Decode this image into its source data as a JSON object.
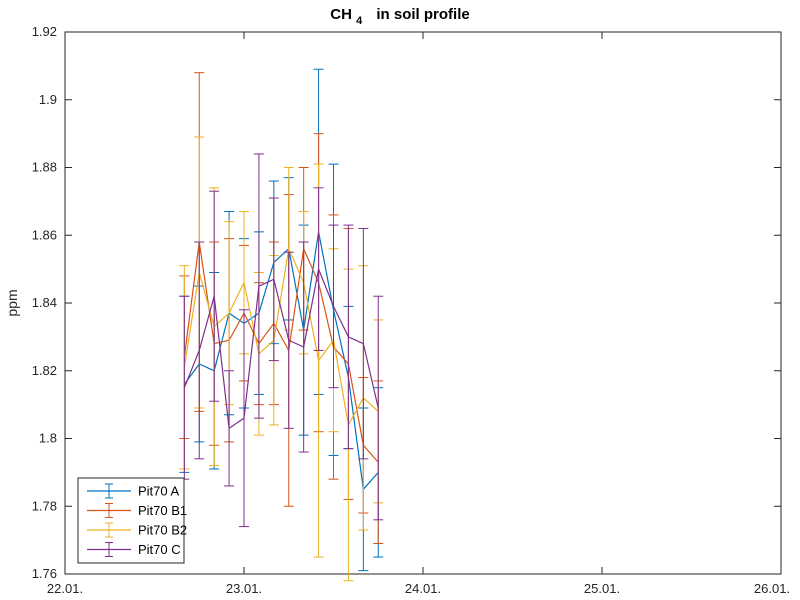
{
  "chart_data": {
    "type": "line",
    "title": {
      "main": "CH",
      "subscript": "4",
      "rest": "in soil profile"
    },
    "xlabel": "",
    "ylabel": "ppm",
    "x_axis": {
      "type": "date",
      "range": [
        "2000-01-22",
        "2000-01-26"
      ],
      "ticks": [
        "2000-01-22",
        "2000-01-23",
        "2000-01-24",
        "2000-01-25",
        "2000-01-26"
      ],
      "tick_labels": [
        "22.01.",
        "23.01.",
        "24.01.",
        "25.01.",
        "26.01."
      ]
    },
    "y_axis": {
      "range": [
        1.76,
        1.92
      ],
      "ticks": [
        1.76,
        1.78,
        1.8,
        1.82,
        1.84,
        1.86,
        1.88,
        1.9,
        1.92
      ],
      "tick_labels": [
        "1.76",
        "1.78",
        "1.8",
        "1.82",
        "1.84",
        "1.86",
        "1.88",
        "1.9",
        "1.92"
      ]
    },
    "grid": false,
    "legend_position": "bottom-left",
    "x": [
      "2000-01-22 16:00",
      "2000-01-22 18:00",
      "2000-01-22 20:00",
      "2000-01-22 22:00",
      "2000-01-23 00:00",
      "2000-01-23 02:00",
      "2000-01-23 04:00",
      "2000-01-23 06:00",
      "2000-01-23 08:00",
      "2000-01-23 10:00",
      "2000-01-23 12:00",
      "2000-01-23 14:00",
      "2000-01-23 16:00",
      "2000-01-23 18:00"
    ],
    "series": [
      {
        "name": "Pit70 A",
        "color": "#0072BD",
        "values": [
          1.816,
          1.822,
          1.82,
          1.837,
          1.834,
          1.837,
          1.852,
          1.856,
          1.832,
          1.861,
          1.838,
          1.818,
          1.785,
          1.79
        ],
        "errors": [
          0.026,
          0.023,
          0.029,
          0.03,
          0.025,
          0.024,
          0.024,
          0.021,
          0.031,
          0.048,
          0.043,
          0.021,
          0.024,
          0.025
        ]
      },
      {
        "name": "Pit70 B1",
        "color": "#D95319",
        "values": [
          1.824,
          1.858,
          1.828,
          1.829,
          1.837,
          1.828,
          1.834,
          1.826,
          1.856,
          1.846,
          1.827,
          1.822,
          1.798,
          1.793
        ],
        "errors": [
          0.024,
          0.05,
          0.03,
          0.03,
          0.02,
          0.018,
          0.024,
          0.046,
          0.024,
          0.044,
          0.039,
          0.04,
          0.02,
          0.024
        ]
      },
      {
        "name": "Pit70 B2",
        "color": "#EDB120",
        "values": [
          1.821,
          1.849,
          1.833,
          1.837,
          1.846,
          1.825,
          1.829,
          1.856,
          1.846,
          1.823,
          1.829,
          1.804,
          1.812,
          1.808
        ],
        "errors": [
          0.03,
          0.04,
          0.041,
          0.027,
          0.021,
          0.024,
          0.025,
          0.024,
          0.021,
          0.058,
          0.027,
          0.046,
          0.039,
          0.027
        ]
      },
      {
        "name": "Pit70 C",
        "color": "#7E2F8E",
        "values": [
          1.815,
          1.826,
          1.842,
          1.803,
          1.806,
          1.845,
          1.847,
          1.829,
          1.827,
          1.85,
          1.839,
          1.83,
          1.828,
          1.809
        ],
        "errors": [
          0.027,
          0.032,
          0.031,
          0.017,
          0.032,
          0.039,
          0.024,
          0.026,
          0.031,
          0.024,
          0.024,
          0.033,
          0.034,
          0.033
        ]
      }
    ]
  }
}
